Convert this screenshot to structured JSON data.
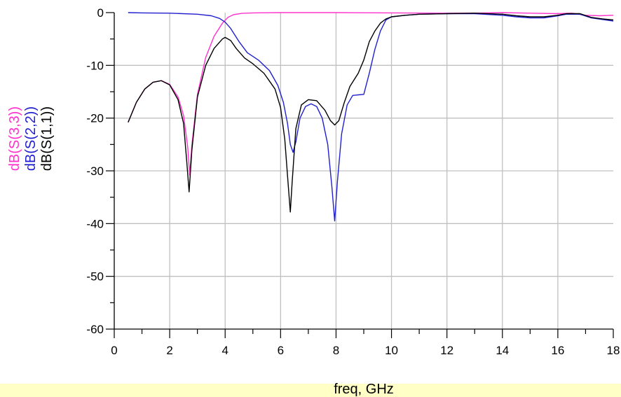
{
  "chart_data": {
    "type": "line",
    "xlabel": "freq, GHz",
    "xlim": [
      0,
      18
    ],
    "ylim": [
      -60,
      0
    ],
    "x_ticks": [
      0,
      2,
      4,
      6,
      8,
      10,
      12,
      14,
      16,
      18
    ],
    "y_ticks": [
      0,
      -10,
      -20,
      -30,
      -40,
      -50,
      -60
    ],
    "grid": true,
    "series": [
      {
        "name": "dB(S(3,3))",
        "color": "#ff33cc",
        "x": [
          0.5,
          0.8,
          1.1,
          1.4,
          1.7,
          2.0,
          2.3,
          2.5,
          2.65,
          2.72,
          2.8,
          3.0,
          3.3,
          3.6,
          3.9,
          4.1,
          4.3,
          4.6,
          5.0,
          6.0,
          8.0,
          10.0,
          12.0,
          13.0,
          14.0,
          15.0,
          16.0,
          16.5,
          17.0,
          17.5,
          18.0
        ],
        "y": [
          -20.8,
          -17.0,
          -14.5,
          -13.2,
          -12.9,
          -13.6,
          -16.0,
          -19.5,
          -25.5,
          -30.8,
          -25.0,
          -15.5,
          -8.5,
          -4.5,
          -2.0,
          -0.9,
          -0.4,
          -0.15,
          -0.05,
          0.0,
          0.0,
          -0.05,
          -0.1,
          -0.1,
          0.0,
          -0.1,
          -0.2,
          -0.1,
          -0.5,
          -0.6,
          -0.5
        ]
      },
      {
        "name": "dB(S(2,2))",
        "color": "#2020d0",
        "x": [
          0.5,
          1.0,
          2.0,
          3.0,
          3.5,
          3.8,
          4.0,
          4.2,
          4.5,
          4.8,
          5.2,
          5.6,
          5.9,
          6.1,
          6.25,
          6.35,
          6.45,
          6.55,
          6.7,
          6.9,
          7.1,
          7.3,
          7.5,
          7.7,
          7.85,
          7.95,
          8.05,
          8.2,
          8.4,
          8.6,
          8.8,
          9.0,
          9.2,
          9.4,
          9.6,
          9.8,
          10.0,
          10.5,
          11.0,
          12.0,
          13.0,
          14.0,
          14.5,
          15.0,
          15.5,
          16.0,
          16.3,
          16.8,
          17.2,
          17.6,
          18.0
        ],
        "y": [
          0.0,
          -0.05,
          -0.1,
          -0.3,
          -0.6,
          -1.1,
          -1.8,
          -3.0,
          -5.5,
          -7.6,
          -9.0,
          -11.0,
          -13.8,
          -17.0,
          -21.0,
          -25.0,
          -26.5,
          -24.5,
          -20.0,
          -17.8,
          -17.3,
          -17.8,
          -20.0,
          -25.0,
          -33.0,
          -39.5,
          -32.0,
          -23.0,
          -17.5,
          -15.7,
          -15.6,
          -15.5,
          -11.5,
          -7.0,
          -3.5,
          -1.4,
          -0.8,
          -0.5,
          -0.3,
          -0.2,
          -0.2,
          -0.5,
          -0.8,
          -1.0,
          -1.0,
          -0.6,
          -0.3,
          -0.3,
          -1.0,
          -1.3,
          -1.6
        ]
      },
      {
        "name": "dB(S(1,1))",
        "color": "#000000",
        "x": [
          0.5,
          0.8,
          1.1,
          1.4,
          1.7,
          2.0,
          2.3,
          2.5,
          2.62,
          2.7,
          2.8,
          3.0,
          3.3,
          3.6,
          3.9,
          4.0,
          4.2,
          4.4,
          4.7,
          5.0,
          5.4,
          5.8,
          6.0,
          6.15,
          6.28,
          6.35,
          6.42,
          6.55,
          6.75,
          7.0,
          7.3,
          7.6,
          7.8,
          7.95,
          8.1,
          8.3,
          8.5,
          8.8,
          9.0,
          9.2,
          9.4,
          9.6,
          9.8,
          10.0,
          10.5,
          11.0,
          12.0,
          13.0,
          14.0,
          14.5,
          15.0,
          15.5,
          16.0,
          16.3,
          16.8,
          17.2,
          17.6,
          18.0
        ],
        "y": [
          -20.8,
          -17.0,
          -14.5,
          -13.2,
          -12.9,
          -13.7,
          -16.5,
          -21.0,
          -28.5,
          -34.0,
          -26.0,
          -16.0,
          -10.0,
          -6.8,
          -5.0,
          -4.7,
          -5.3,
          -6.8,
          -8.6,
          -9.7,
          -11.5,
          -14.5,
          -18.0,
          -24.0,
          -33.0,
          -37.8,
          -32.0,
          -22.0,
          -17.5,
          -16.5,
          -16.7,
          -18.5,
          -20.5,
          -21.3,
          -20.5,
          -17.0,
          -14.0,
          -11.5,
          -9.0,
          -5.5,
          -3.5,
          -2.0,
          -1.2,
          -0.8,
          -0.5,
          -0.3,
          -0.2,
          -0.1,
          -0.3,
          -0.6,
          -0.8,
          -0.8,
          -0.5,
          -0.2,
          -0.2,
          -0.9,
          -1.2,
          -1.4
        ]
      }
    ]
  }
}
